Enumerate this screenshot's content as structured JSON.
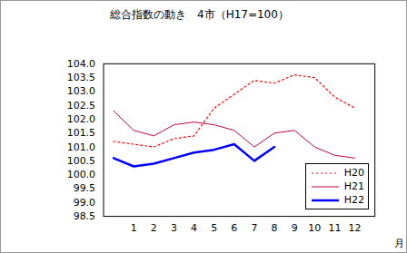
{
  "chart_data": {
    "type": "line",
    "title": "総合指数の動き　4市（H17=100）",
    "x_label": "月",
    "x": [
      0,
      1,
      2,
      3,
      4,
      5,
      6,
      7,
      8,
      9,
      10,
      11,
      12
    ],
    "xlim": [
      -0.5,
      13
    ],
    "xticks": [
      1,
      2,
      3,
      4,
      5,
      6,
      7,
      8,
      9,
      10,
      11,
      12
    ],
    "ylim": [
      98.5,
      104.0
    ],
    "yticks": [
      {
        "value": 98.5,
        "label": "98.5"
      },
      {
        "value": 99,
        "label": "99.0"
      },
      {
        "value": 99.5,
        "label": "99.5"
      },
      {
        "value": 100,
        "label": "100.0"
      },
      {
        "value": 100.5,
        "label": "100.5"
      },
      {
        "value": 101,
        "label": "101.0"
      },
      {
        "value": 101.5,
        "label": "101.5"
      },
      {
        "value": 102,
        "label": "102.0"
      },
      {
        "value": 102.5,
        "label": "102.5"
      },
      {
        "value": 103,
        "label": "103.0"
      },
      {
        "value": 103.5,
        "label": "103.5"
      },
      {
        "value": 104,
        "label": "104.0"
      }
    ],
    "grid": false,
    "legend": "lower right",
    "series": [
      {
        "name": "H20",
        "color": "#ff0000",
        "line_style": "dotted",
        "values": [
          101.2,
          101.1,
          101.0,
          101.3,
          101.4,
          102.4,
          102.9,
          103.4,
          103.3,
          103.6,
          103.5,
          102.8,
          102.4
        ]
      },
      {
        "name": "H21",
        "color": "#c00040",
        "line_style": "solid",
        "values": [
          102.3,
          101.6,
          101.4,
          101.8,
          101.9,
          101.8,
          101.6,
          101.0,
          101.5,
          101.6,
          101.0,
          100.7,
          100.6
        ]
      },
      {
        "name": "H22",
        "color": "#0000ff",
        "line_style": "solid",
        "values": [
          100.6,
          100.3,
          100.4,
          100.6,
          100.8,
          100.9,
          101.1,
          100.5,
          101.0,
          null,
          null,
          null,
          null
        ]
      }
    ]
  }
}
